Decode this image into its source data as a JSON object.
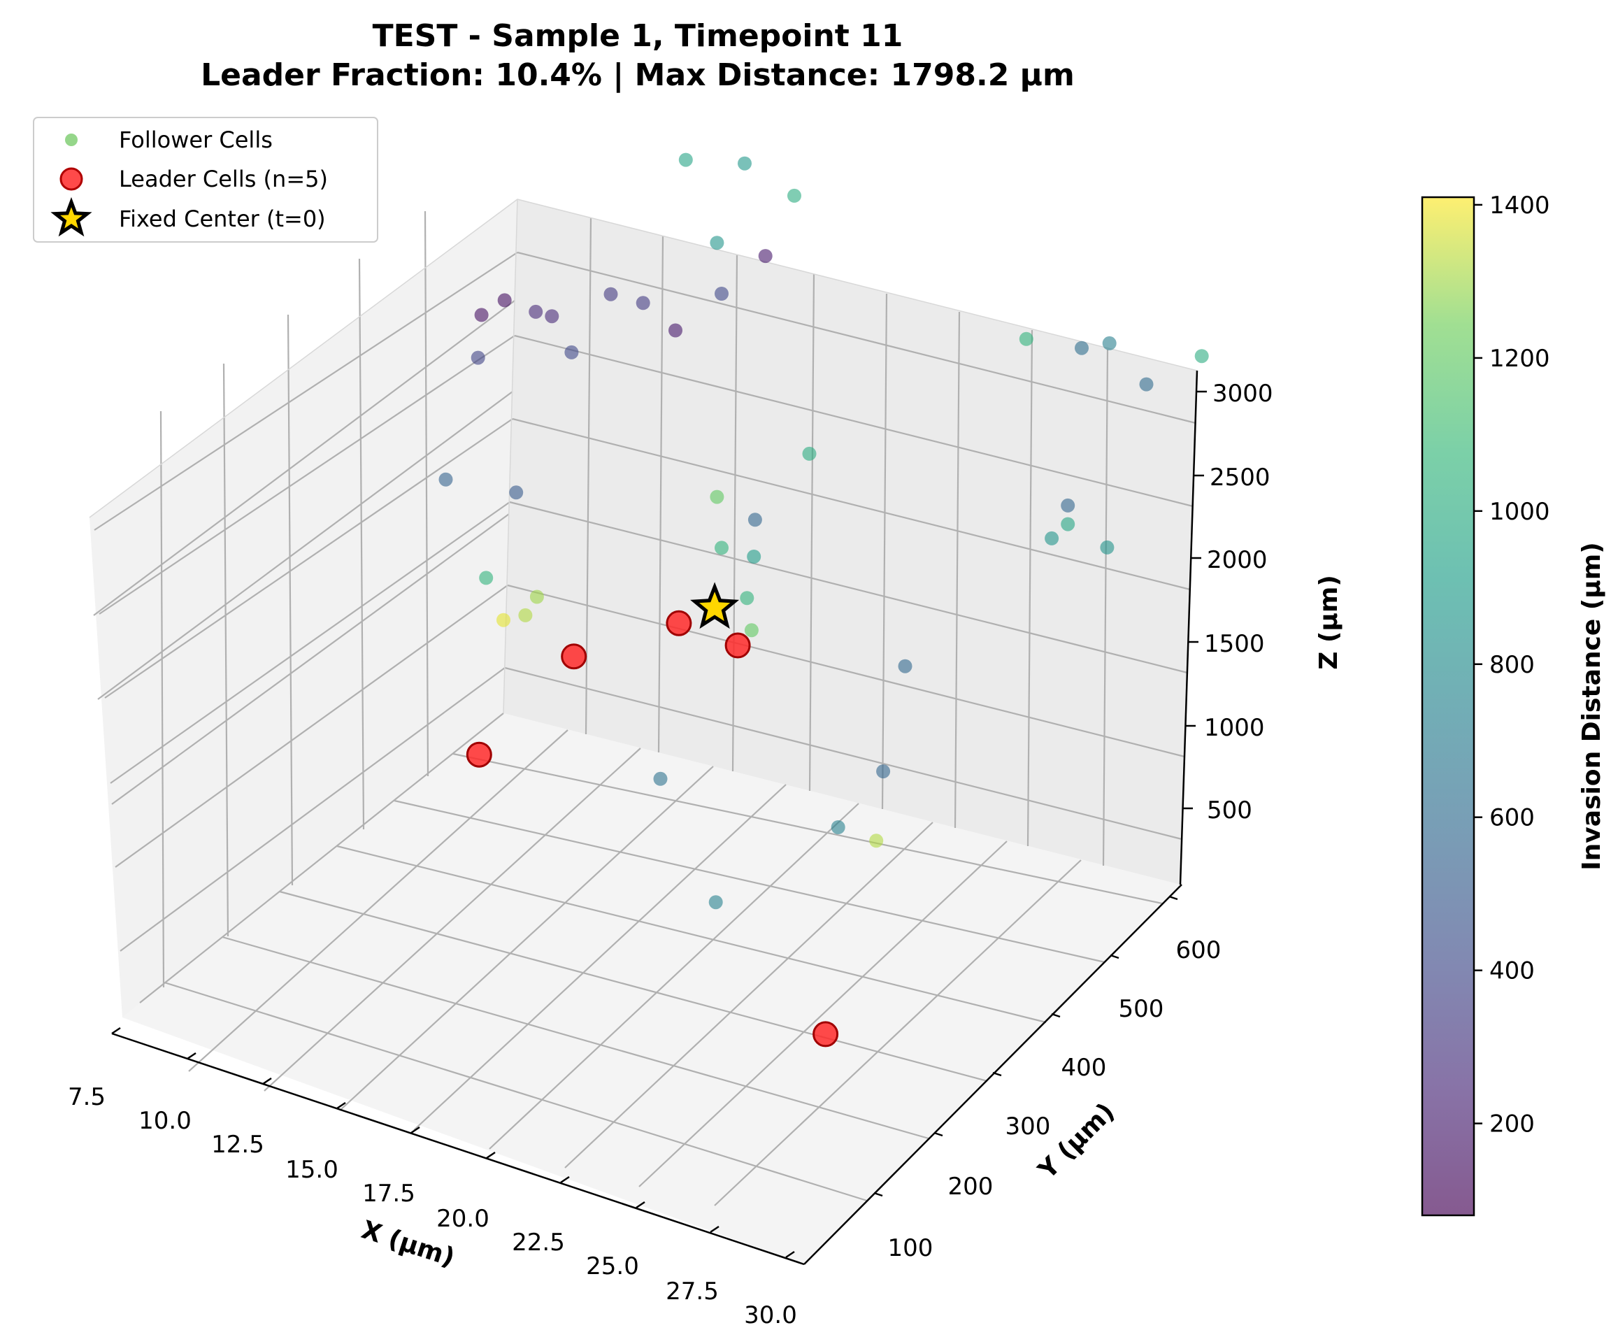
{
  "chart_data": {
    "type": "scatter",
    "subtype": "3d",
    "title": "TEST - Sample 1, Timepoint 11",
    "subtitle": "Leader Fraction: 10.4% | Max Distance: 1798.2 µm",
    "xlabel": "X (µm)",
    "ylabel": "Y (µm)",
    "zlabel": "Z (µm)",
    "xlim": [
      7.5,
      30.0
    ],
    "ylim": [
      20,
      650
    ],
    "zlim": [
      100,
      3100
    ],
    "x_ticks": [
      "7.5",
      "10.0",
      "12.5",
      "15.0",
      "17.5",
      "20.0",
      "22.5",
      "25.0",
      "27.5",
      "30.0"
    ],
    "y_ticks": [
      "100",
      "200",
      "300",
      "400",
      "500",
      "600"
    ],
    "z_ticks": [
      "500",
      "1000",
      "1500",
      "2000",
      "2500",
      "3000"
    ],
    "grid": true,
    "legend_position": "top-left",
    "legend": [
      {
        "label": "Follower Cells",
        "marker": "circle",
        "color": "#95d68a"
      },
      {
        "label": "Leader Cells (n=5)",
        "marker": "circle",
        "color": "#ff2a2a"
      },
      {
        "label": "Fixed Center (t=0)",
        "marker": "star",
        "color": "#ffd700"
      }
    ],
    "colorbar": {
      "label": "Invasion Distance (µm)",
      "range": [
        80,
        1410
      ],
      "ticks": [
        "200",
        "400",
        "600",
        "800",
        "1000",
        "1200",
        "1400"
      ],
      "colormap": "viridis"
    },
    "fixed_center": {
      "x": 18.5,
      "y": 400,
      "z": 1800
    },
    "leader_cells": [
      {
        "x": 14.5,
        "y": 380,
        "z": 1400
      },
      {
        "x": 13.0,
        "y": 300,
        "z": 1000
      },
      {
        "x": 16.5,
        "y": 450,
        "z": 1500
      },
      {
        "x": 18.5,
        "y": 440,
        "z": 1500
      },
      {
        "x": 28.0,
        "y": 60,
        "z": 800
      }
    ],
    "follower_cells": [
      {
        "x": 7.5,
        "y": 650,
        "z": 600,
        "d": 1380
      },
      {
        "x": 7.5,
        "y": 620,
        "z": 900,
        "d": 1050
      },
      {
        "x": 7.5,
        "y": 550,
        "z": 1600,
        "d": 550
      },
      {
        "x": 9.5,
        "y": 560,
        "z": 1600,
        "d": 500
      },
      {
        "x": 8.5,
        "y": 650,
        "z": 2300,
        "d": 250
      },
      {
        "x": 9.0,
        "y": 650,
        "z": 2300,
        "d": 250
      },
      {
        "x": 8.5,
        "y": 550,
        "z": 2300,
        "d": 380
      },
      {
        "x": 10.5,
        "y": 600,
        "z": 2300,
        "d": 400
      },
      {
        "x": 9.5,
        "y": 500,
        "z": 2700,
        "d": 150
      },
      {
        "x": 9.5,
        "y": 540,
        "z": 2680,
        "d": 140
      },
      {
        "x": 13.0,
        "y": 400,
        "z": 1600,
        "d": 1300
      },
      {
        "x": 13.0,
        "y": 380,
        "z": 1550,
        "d": 1320
      },
      {
        "x": 13.5,
        "y": 500,
        "z": 3000,
        "d": 330
      },
      {
        "x": 14.5,
        "y": 500,
        "z": 3000,
        "d": 340
      },
      {
        "x": 15.5,
        "y": 580,
        "z": 2900,
        "d": 400
      },
      {
        "x": 15.5,
        "y": 500,
        "z": 2900,
        "d": 180
      },
      {
        "x": 16.5,
        "y": 600,
        "z": 3100,
        "d": 180
      },
      {
        "x": 15.0,
        "y": 600,
        "z": 3100,
        "d": 850
      },
      {
        "x": 13.5,
        "y": 630,
        "z": 3400,
        "d": 950
      },
      {
        "x": 15.5,
        "y": 620,
        "z": 3500,
        "d": 870
      },
      {
        "x": 16.5,
        "y": 650,
        "z": 3300,
        "d": 1000
      },
      {
        "x": 20.0,
        "y": 480,
        "z": 2500,
        "d": 1000
      },
      {
        "x": 17.5,
        "y": 460,
        "z": 2200,
        "d": 1200
      },
      {
        "x": 18.5,
        "y": 470,
        "z": 2100,
        "d": 560
      },
      {
        "x": 18.0,
        "y": 440,
        "z": 2000,
        "d": 1050
      },
      {
        "x": 19.0,
        "y": 440,
        "z": 2000,
        "d": 900
      },
      {
        "x": 19.5,
        "y": 400,
        "z": 1900,
        "d": 1050
      },
      {
        "x": 20.0,
        "y": 380,
        "z": 1800,
        "d": 1200
      },
      {
        "x": 26.0,
        "y": 520,
        "z": 3300,
        "d": 1050
      },
      {
        "x": 27.0,
        "y": 560,
        "z": 3200,
        "d": 620
      },
      {
        "x": 27.5,
        "y": 580,
        "z": 3200,
        "d": 720
      },
      {
        "x": 29.0,
        "y": 560,
        "z": 3100,
        "d": 600
      },
      {
        "x": 30.0,
        "y": 600,
        "z": 3200,
        "d": 1000
      },
      {
        "x": 28.0,
        "y": 480,
        "z": 2600,
        "d": 560
      },
      {
        "x": 28.0,
        "y": 480,
        "z": 2500,
        "d": 960
      },
      {
        "x": 27.5,
        "y": 480,
        "z": 2400,
        "d": 860
      },
      {
        "x": 28.5,
        "y": 520,
        "z": 2300,
        "d": 840
      },
      {
        "x": 23.5,
        "y": 450,
        "z": 1600,
        "d": 580
      },
      {
        "x": 19.5,
        "y": 250,
        "z": 1300,
        "d": 640
      },
      {
        "x": 25.5,
        "y": 300,
        "z": 1500,
        "d": 560
      },
      {
        "x": 25.0,
        "y": 250,
        "z": 1300,
        "d": 740
      },
      {
        "x": 26.0,
        "y": 260,
        "z": 1250,
        "d": 1320
      },
      {
        "x": 23.0,
        "y": 150,
        "z": 1050,
        "d": 740
      }
    ]
  }
}
